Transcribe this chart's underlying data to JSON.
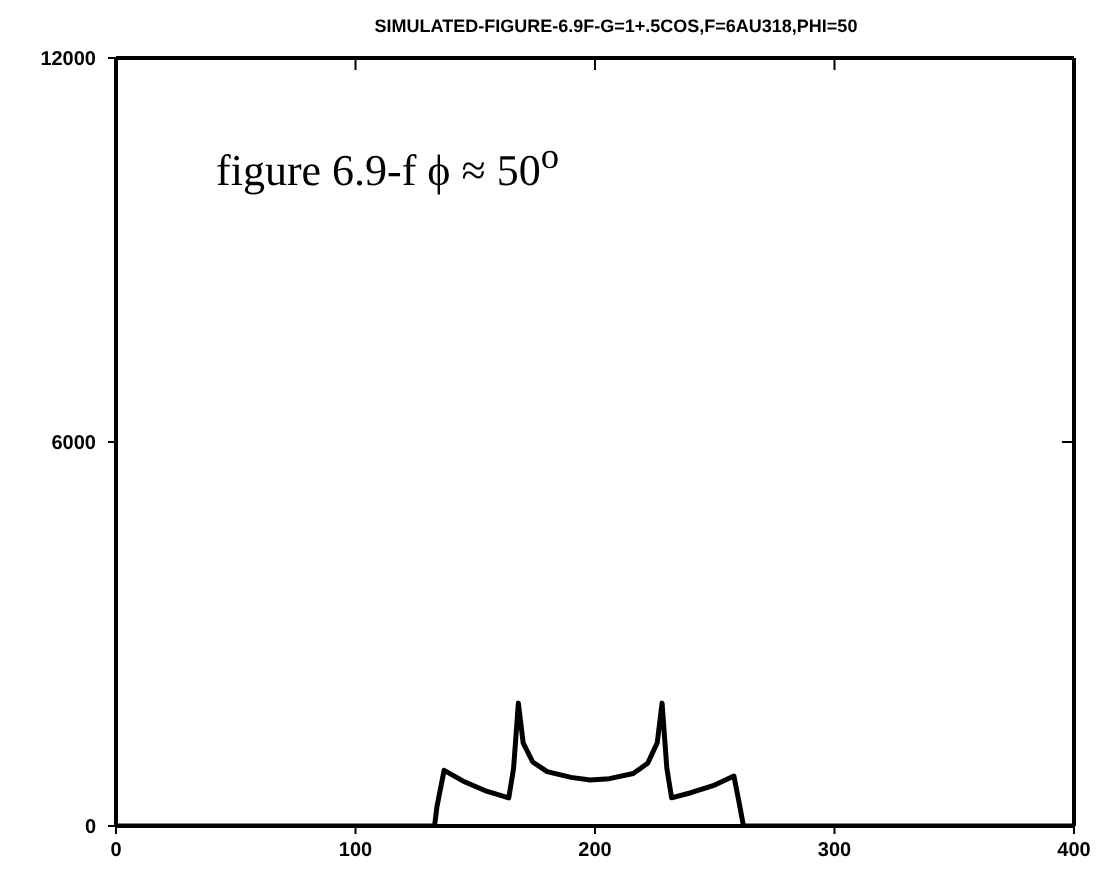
{
  "chart_data": {
    "type": "line",
    "title": "SIMULATED-FIGURE-6.9F-G=1+.5COS,F=6AU318,PHI=50",
    "annotations": [
      "figure 6.9-f  ϕ ≈ 50$^{o}$"
    ],
    "x": [
      0,
      133,
      134,
      137,
      145,
      155,
      164,
      166,
      168,
      170,
      174,
      180,
      190,
      198,
      206,
      216,
      222,
      226,
      228,
      230,
      232,
      240,
      250,
      258,
      260,
      262,
      400
    ],
    "series": [
      {
        "color": "#000000",
        "values": [
          0,
          0,
          300,
          870,
          700,
          540,
          440,
          900,
          1920,
          1300,
          1000,
          850,
          760,
          720,
          740,
          820,
          980,
          1300,
          1920,
          900,
          440,
          520,
          640,
          780,
          400,
          0,
          0
        ]
      }
    ],
    "xlim": [
      0,
      400
    ],
    "xticks": [
      0,
      100,
      200,
      300,
      400
    ],
    "ylim": [
      0,
      12000
    ],
    "yticks": [
      0,
      6000,
      12000
    ],
    "grid": false,
    "legend": false,
    "marker": "none",
    "line_style": "solid"
  }
}
